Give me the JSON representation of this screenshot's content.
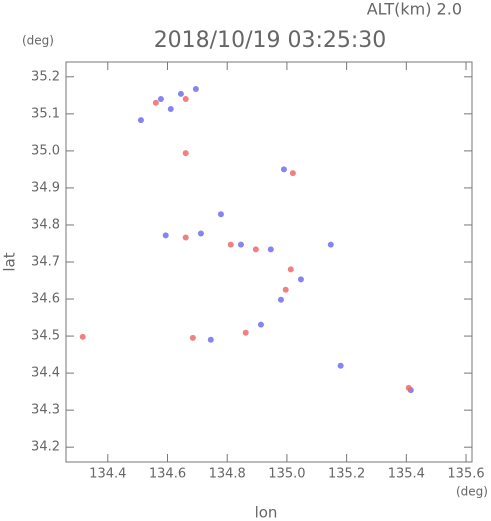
{
  "chart_data": {
    "type": "scatter",
    "title": "2018/10/19 03:25:30",
    "subtitle": "ALT(km) 2.0",
    "y_unit": "(deg)",
    "x_unit": "(deg)",
    "x_label": "lon",
    "y_label": "lat",
    "xlim": [
      134.26,
      135.62
    ],
    "ylim": [
      34.16,
      35.24
    ],
    "xticks": [
      134.4,
      134.6,
      134.8,
      {
        "value": 135,
        "label": "135.0"
      },
      135.2,
      135.4,
      135.6
    ],
    "yticks": [
      34.2,
      34.3,
      34.4,
      34.5,
      34.6,
      34.7,
      34.8,
      34.9,
      {
        "value": 35,
        "label": "35.0"
      },
      35.1,
      35.2
    ],
    "series": [
      {
        "color": "#7070f0",
        "x": [
          134.511,
          134.578,
          134.645,
          134.695,
          134.611,
          134.99,
          134.594,
          134.712,
          134.779,
          134.846,
          134.946,
          135.047,
          134.98,
          134.913,
          134.745,
          135.415,
          135.147,
          135.18
        ],
        "values": [
          35.083,
          35.14,
          35.154,
          35.167,
          35.113,
          34.95,
          34.772,
          34.777,
          34.829,
          34.747,
          34.734,
          34.653,
          34.598,
          34.531,
          34.49,
          34.354,
          34.747,
          34.42
        ]
      },
      {
        "color": "#f06a6a",
        "x": [
          134.561,
          134.661,
          134.661,
          134.316,
          135.02,
          134.661,
          134.812,
          134.896,
          135.013,
          134.996,
          134.862,
          134.685,
          135.408
        ],
        "values": [
          35.13,
          35.14,
          34.994,
          34.498,
          34.94,
          34.766,
          34.747,
          34.734,
          34.68,
          34.625,
          34.509,
          34.495,
          34.36
        ]
      }
    ]
  }
}
